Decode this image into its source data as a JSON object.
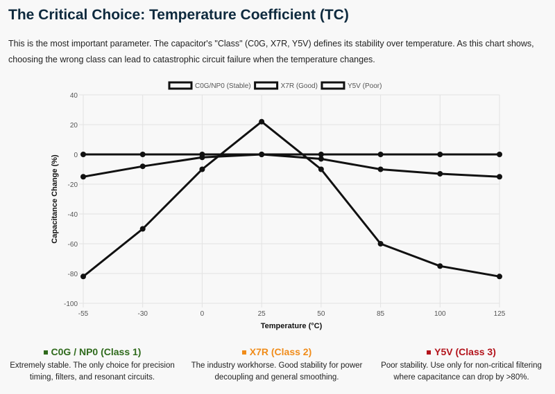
{
  "title": "The Critical Choice: Temperature Coefficient (TC)",
  "intro": "This is the most important parameter. The capacitor's \"Class\" (C0G, X7R, Y5V) defines its stability over temperature. As this chart shows, choosing the wrong class can lead to catastrophic circuit failure when the temperature changes.",
  "chart_data": {
    "type": "line",
    "title": "",
    "xlabel": "Temperature (°C)",
    "ylabel": "Capacitance Change (%)",
    "categories": [
      "-55",
      "-30",
      "0",
      "25",
      "50",
      "85",
      "100",
      "125"
    ],
    "ylim": [
      -100,
      40
    ],
    "yticks": [
      40,
      20,
      0,
      -20,
      -40,
      -60,
      -80,
      -100
    ],
    "grid": true,
    "legend": "top",
    "series": [
      {
        "name": "C0G/NP0 (Stable)",
        "color": "#111111",
        "values": [
          0,
          0,
          0,
          0,
          0,
          0,
          0,
          0
        ]
      },
      {
        "name": "X7R (Good)",
        "color": "#111111",
        "values": [
          -15,
          -8,
          -2,
          0,
          -3,
          -10,
          -13,
          -15
        ]
      },
      {
        "name": "Y5V (Poor)",
        "color": "#111111",
        "values": [
          -82,
          -50,
          -10,
          22,
          -10,
          -60,
          -75,
          -82
        ]
      }
    ]
  },
  "cards": [
    {
      "title": "C0G / NP0 (Class 1)",
      "color": "#2f6a1c",
      "text": "Extremely stable. The only choice for precision timing, filters, and resonant circuits."
    },
    {
      "title": "X7R (Class 2)",
      "color": "#f08c1a",
      "text": "The industry workhorse. Good stability for power decoupling and general smoothing."
    },
    {
      "title": "Y5V (Class 3)",
      "color": "#b3141c",
      "text": "Poor stability. Use only for non-critical filtering where capacitance can drop by >80%."
    }
  ]
}
